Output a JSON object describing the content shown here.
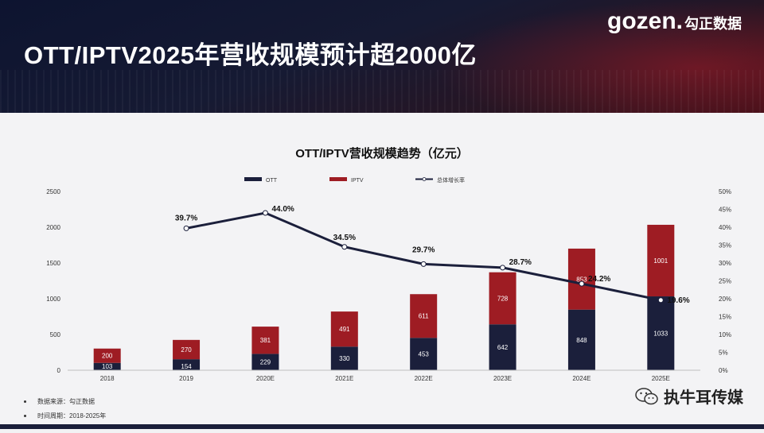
{
  "header": {
    "title": "OTT/IPTV2025年营收规模预计超2000亿",
    "logo_text": "gozen.",
    "logo_cn": "勾正数据"
  },
  "chart_data": {
    "type": "bar",
    "title": "OTT/IPTV营收规模趋势（亿元）",
    "categories": [
      "2018",
      "2019",
      "2020E",
      "2021E",
      "2022E",
      "2023E",
      "2024E",
      "2025E"
    ],
    "series": [
      {
        "name": "OTT",
        "type": "bar",
        "color": "#1b1f3b",
        "values": [
          103,
          154,
          229,
          330,
          453,
          642,
          848,
          1033
        ]
      },
      {
        "name": "IPTV",
        "type": "bar",
        "color": "#9e1c23",
        "values": [
          200,
          270,
          381,
          491,
          611,
          728,
          853,
          1001
        ]
      },
      {
        "name": "总体增长率",
        "type": "line",
        "color": "#1b1f3b",
        "values": [
          null,
          39.7,
          44.0,
          34.5,
          29.7,
          28.7,
          24.2,
          19.6
        ],
        "labels": [
          "",
          "39.7%",
          "44.0%",
          "34.5%",
          "29.7%",
          "28.7%",
          "24.2%",
          "19.6%"
        ]
      }
    ],
    "ylim": [
      0,
      2500
    ],
    "yticks": [
      "0",
      "500",
      "1000",
      "1500",
      "2000",
      "2500"
    ],
    "y2lim": [
      0,
      50
    ],
    "y2ticks": [
      "0%",
      "5%",
      "10%",
      "15%",
      "20%",
      "25%",
      "30%",
      "35%",
      "40%",
      "45%",
      "50%"
    ],
    "stacked": true,
    "legend": "top-center",
    "grid": false
  },
  "footnotes": [
    "数据来源：勾正数据",
    "时间周期：2018-2025年"
  ],
  "watermark": "执牛耳传媒"
}
